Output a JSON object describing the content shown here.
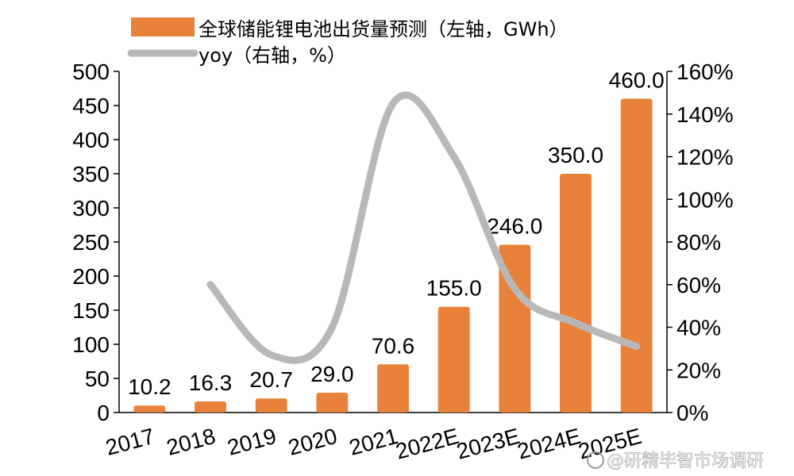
{
  "chart_data": {
    "type": "bar",
    "categories": [
      "2017",
      "2018",
      "2019",
      "2020",
      "2021",
      "2022E",
      "2023E",
      "2024E",
      "2025E"
    ],
    "series": [
      {
        "name": "全球储能锂电池出货量预测（左轴，GWh）",
        "type": "bar",
        "axis": "left",
        "color": "#E8823A",
        "values": [
          10.2,
          16.3,
          20.7,
          29.0,
          70.6,
          155.0,
          246.0,
          350.0,
          460.0
        ],
        "labels": [
          "10.2",
          "16.3",
          "20.7",
          "29.0",
          "70.6",
          "155.0",
          "246.0",
          "350.0",
          "460.0"
        ]
      },
      {
        "name": "yoy（右轴，%）",
        "type": "line",
        "axis": "right",
        "color": "#B8B8B8",
        "values": [
          null,
          60,
          27,
          40,
          145,
          120,
          58,
          42,
          31
        ]
      }
    ],
    "left_axis": {
      "min": 0,
      "max": 500,
      "ticks": [
        "0",
        "50",
        "100",
        "150",
        "200",
        "250",
        "300",
        "350",
        "400",
        "450",
        "500"
      ]
    },
    "right_axis": {
      "min": 0,
      "max": 160,
      "ticks": [
        "0%",
        "20%",
        "40%",
        "60%",
        "80%",
        "100%",
        "120%",
        "140%",
        "160%"
      ]
    },
    "grid": false,
    "legend_position": "top-left"
  },
  "watermark": "@研精毕智市场调研"
}
